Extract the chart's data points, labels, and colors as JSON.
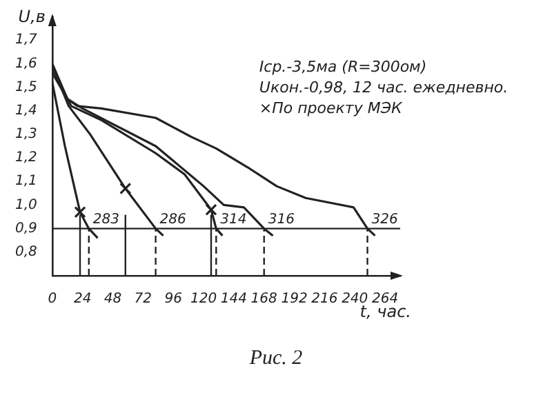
{
  "chart_data": {
    "type": "line",
    "xlabel": "t, час.",
    "ylabel": "U,в",
    "annotations": [
      "Iср.-3,5ма (R=300ом)",
      "Uкон.-0,98, 12 час. ежедневно.",
      "×По проекту МЭК",
      "Рис. 2"
    ],
    "series": [
      {
        "name": "283",
        "color": "#222222",
        "x": [
          0,
          10,
          22,
          29,
          36
        ],
        "values": [
          1.52,
          1.25,
          0.97,
          0.9,
          0.86
        ]
      },
      {
        "name": "286",
        "color": "#222222",
        "x": [
          0,
          13,
          30,
          58,
          82,
          88
        ],
        "values": [
          1.59,
          1.42,
          1.3,
          1.07,
          0.9,
          0.87
        ]
      },
      {
        "name": "314",
        "color": "#222222",
        "x": [
          0,
          15,
          39,
          82,
          105,
          126,
          130,
          135
        ],
        "values": [
          1.58,
          1.42,
          1.36,
          1.22,
          1.13,
          0.98,
          0.9,
          0.87
        ]
      },
      {
        "name": "316",
        "color": "#222222",
        "x": [
          0,
          12,
          24,
          82,
          120,
          136,
          152,
          168,
          175
        ],
        "values": [
          1.56,
          1.45,
          1.41,
          1.25,
          1.08,
          1.0,
          0.99,
          0.9,
          0.87
        ]
      },
      {
        "name": "326",
        "color": "#222222",
        "x": [
          0,
          12,
          20,
          39,
          82,
          110,
          130,
          155,
          178,
          201,
          239,
          250,
          256
        ],
        "values": [
          1.6,
          1.45,
          1.42,
          1.41,
          1.37,
          1.29,
          1.24,
          1.16,
          1.08,
          1.03,
          0.99,
          0.9,
          0.87
        ]
      },
      {
        "type": "scatter",
        "marker": "cross",
        "color": "#222222",
        "x": [
          22,
          58,
          126
        ],
        "values": [
          0.97,
          1.07,
          0.98
        ]
      }
    ],
    "xlim": [
      0,
      276
    ],
    "xticks": [
      0,
      24,
      48,
      72,
      96,
      120,
      144,
      168,
      192,
      216,
      240,
      264
    ],
    "ylim": [
      0.7,
      1.8
    ],
    "yticks": [
      {
        "value": 0.8,
        "label": "0,8"
      },
      {
        "value": 0.9,
        "label": "0,9"
      },
      {
        "value": 1.0,
        "label": "1,0"
      },
      {
        "value": 1.1,
        "label": "1,1"
      },
      {
        "value": 1.2,
        "label": "1,2"
      },
      {
        "value": 1.3,
        "label": "1,3"
      },
      {
        "value": 1.4,
        "label": "1,4"
      },
      {
        "value": 1.5,
        "label": "1,5"
      },
      {
        "value": 1.6,
        "label": "1,6"
      },
      {
        "value": 1.7,
        "label": "1,7"
      }
    ],
    "ref_lines": [
      {
        "axis": "y",
        "value": 0.9
      },
      {
        "axis": "x",
        "value": 22
      },
      {
        "axis": "x",
        "value": 58
      },
      {
        "axis": "x",
        "value": 126
      },
      {
        "axis": "x",
        "value": 29,
        "line_style": "dashed"
      },
      {
        "axis": "x",
        "value": 82,
        "line_style": "dashed"
      },
      {
        "axis": "x",
        "value": 130,
        "line_style": "dashed"
      },
      {
        "axis": "x",
        "value": 168,
        "line_style": "dashed"
      },
      {
        "axis": "x",
        "value": 250,
        "line_style": "dashed"
      }
    ],
    "grid": false,
    "legend": false,
    "line_style": "solid",
    "marker": "none"
  }
}
